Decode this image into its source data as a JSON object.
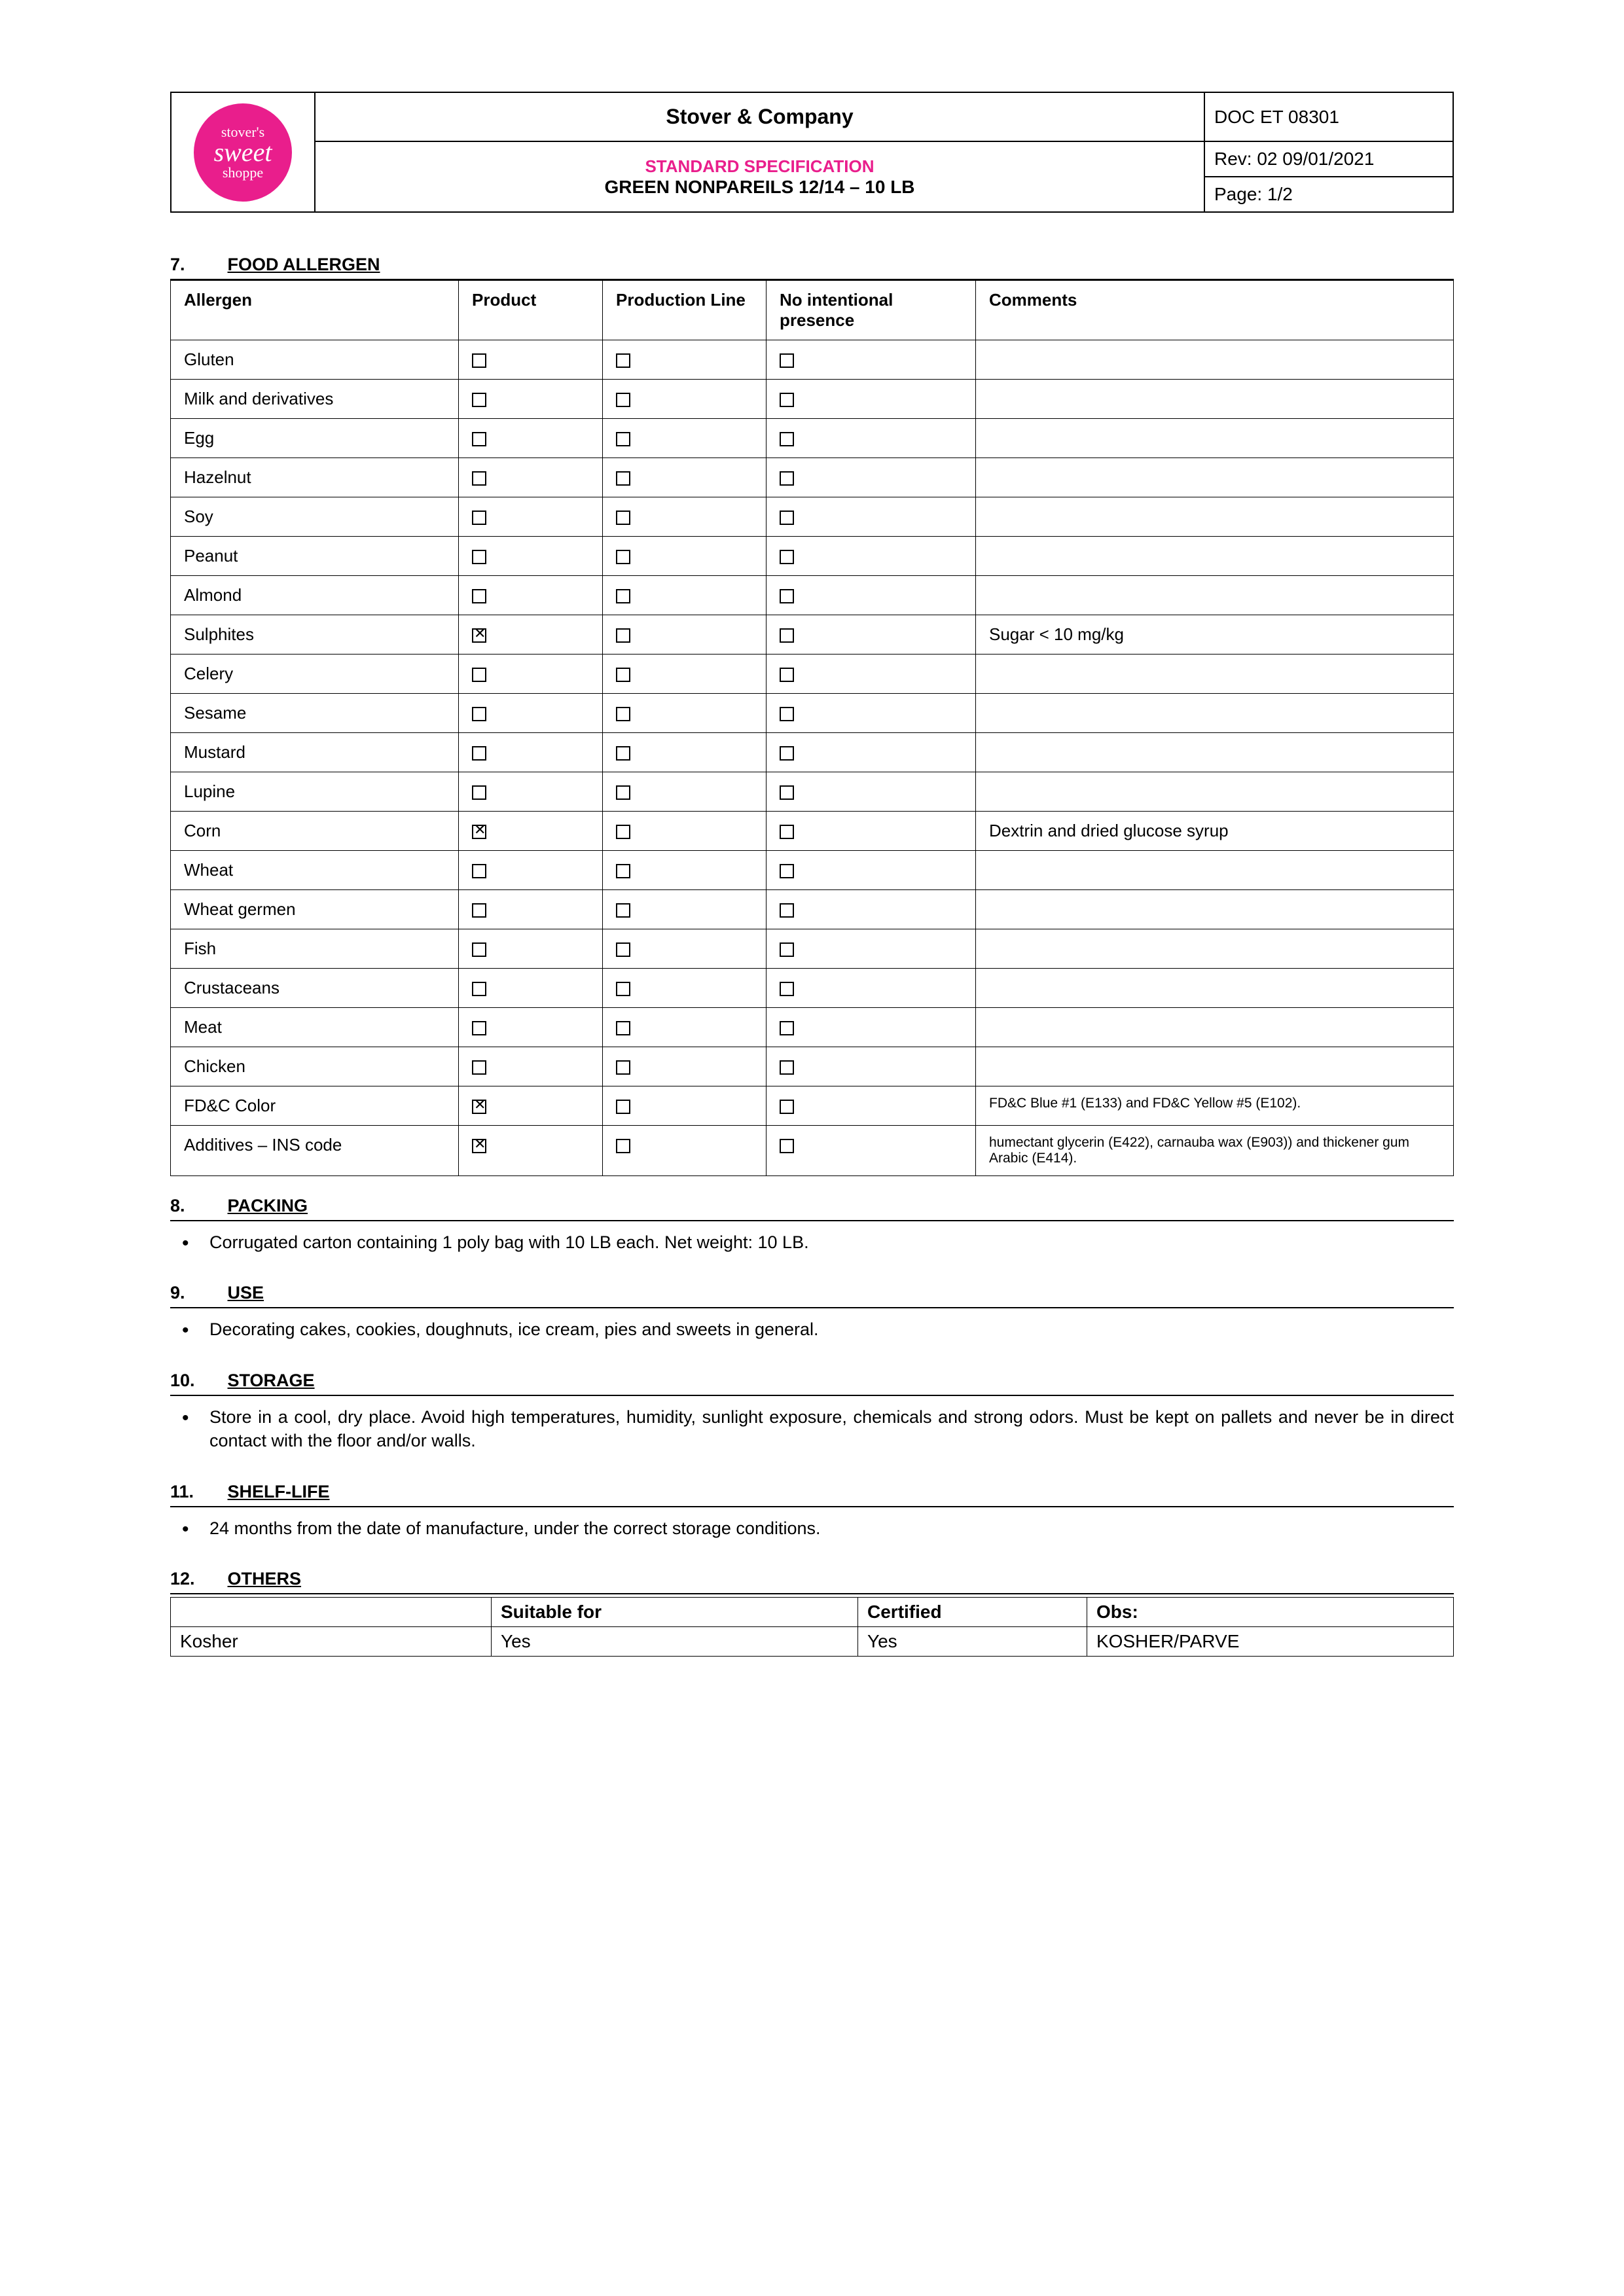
{
  "logo": {
    "line1": "stover's",
    "line2": "sweet",
    "line3": "shoppe"
  },
  "header": {
    "company": "Stover & Company",
    "spec_title": "STANDARD SPECIFICATION",
    "product": "GREEN NONPAREILS 12/14 – 10 LB",
    "doc": "DOC ET 08301",
    "rev": "Rev: 02 09/01/2021",
    "page": "Page: 1/2"
  },
  "allergen_section": {
    "num": "7.",
    "title": "FOOD ALLERGEN"
  },
  "allergen_headers": {
    "allergen": "Allergen",
    "product": "Product",
    "line": "Production Line",
    "presence": "No intentional presence",
    "comments": "Comments"
  },
  "allergens": [
    {
      "name": "Gluten",
      "product": false,
      "line": false,
      "presence": false,
      "comment": ""
    },
    {
      "name": "Milk and derivatives",
      "product": false,
      "line": false,
      "presence": false,
      "comment": ""
    },
    {
      "name": "Egg",
      "product": false,
      "line": false,
      "presence": false,
      "comment": ""
    },
    {
      "name": "Hazelnut",
      "product": false,
      "line": false,
      "presence": false,
      "comment": ""
    },
    {
      "name": "Soy",
      "product": false,
      "line": false,
      "presence": false,
      "comment": ""
    },
    {
      "name": "Peanut",
      "product": false,
      "line": false,
      "presence": false,
      "comment": ""
    },
    {
      "name": "Almond",
      "product": false,
      "line": false,
      "presence": false,
      "comment": ""
    },
    {
      "name": "Sulphites",
      "product": true,
      "line": false,
      "presence": false,
      "comment": "Sugar < 10 mg/kg"
    },
    {
      "name": "Celery",
      "product": false,
      "line": false,
      "presence": false,
      "comment": ""
    },
    {
      "name": "Sesame",
      "product": false,
      "line": false,
      "presence": false,
      "comment": ""
    },
    {
      "name": "Mustard",
      "product": false,
      "line": false,
      "presence": false,
      "comment": ""
    },
    {
      "name": "Lupine",
      "product": false,
      "line": false,
      "presence": false,
      "comment": ""
    },
    {
      "name": "Corn",
      "product": true,
      "line": false,
      "presence": false,
      "comment": "Dextrin and dried glucose syrup"
    },
    {
      "name": "Wheat",
      "product": false,
      "line": false,
      "presence": false,
      "comment": ""
    },
    {
      "name": "Wheat germen",
      "product": false,
      "line": false,
      "presence": false,
      "comment": ""
    },
    {
      "name": "Fish",
      "product": false,
      "line": false,
      "presence": false,
      "comment": ""
    },
    {
      "name": "Crustaceans",
      "product": false,
      "line": false,
      "presence": false,
      "comment": ""
    },
    {
      "name": "Meat",
      "product": false,
      "line": false,
      "presence": false,
      "comment": ""
    },
    {
      "name": "Chicken",
      "product": false,
      "line": false,
      "presence": false,
      "comment": ""
    },
    {
      "name": "FD&C Color",
      "product": true,
      "line": false,
      "presence": false,
      "comment": "FD&C Blue #1 (E133) and FD&C Yellow #5 (E102).",
      "small": true
    },
    {
      "name": "Additives – INS code",
      "product": true,
      "line": false,
      "presence": false,
      "comment": "humectant glycerin (E422), carnauba wax (E903)) and thickener gum Arabic (E414).",
      "small": true
    }
  ],
  "sections": {
    "packing": {
      "num": "8.",
      "title": "PACKING",
      "text": "Corrugated carton containing 1 poly bag with 10 LB each. Net weight: 10 LB."
    },
    "use": {
      "num": "9.",
      "title": "USE",
      "text": "Decorating cakes, cookies, doughnuts, ice cream, pies and sweets in general."
    },
    "storage": {
      "num": "10.",
      "title": "STORAGE",
      "text": "Store in a cool, dry place. Avoid high temperatures, humidity, sunlight exposure, chemicals and strong odors. Must be kept on pallets and never be in direct contact with the floor and/or walls."
    },
    "shelf": {
      "num": "11.",
      "title": "SHELF-LIFE",
      "text": "24 months from the date of manufacture, under the correct storage conditions."
    },
    "others": {
      "num": "12.",
      "title": "OTHERS"
    }
  },
  "others_table": {
    "headers": {
      "blank": "",
      "suitable": "Suitable for",
      "certified": "Certified",
      "obs": "Obs:"
    },
    "rows": [
      {
        "label": "Kosher",
        "suitable": "Yes",
        "certified": "Yes",
        "obs": "KOSHER/PARVE"
      }
    ]
  }
}
